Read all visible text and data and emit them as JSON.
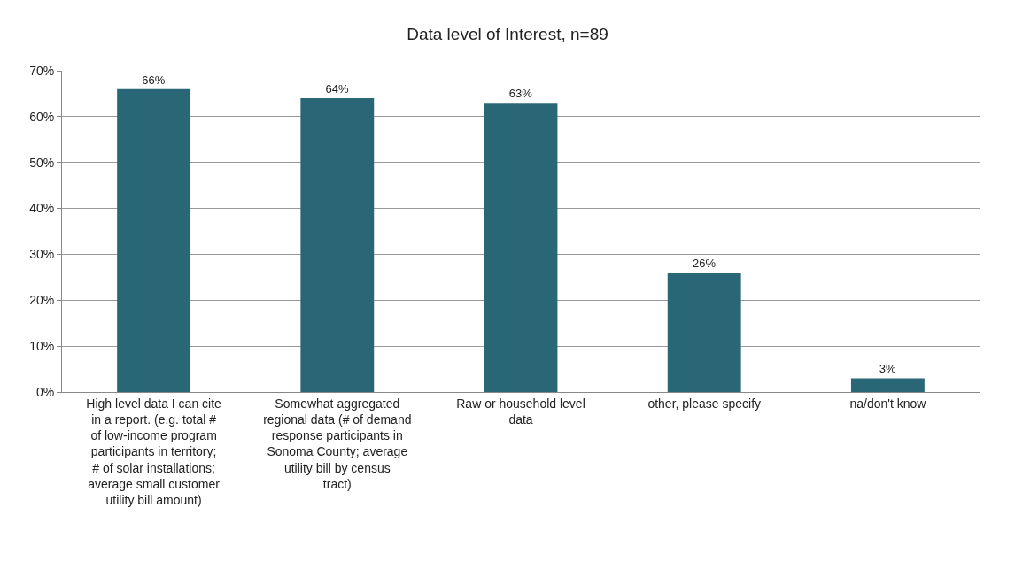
{
  "chart_data": {
    "type": "bar",
    "title": "Data level of Interest, n=89",
    "categories": [
      "High level data I can cite in a report. (e.g. total # of low-income program participants in territory; # of solar installations; average small customer utility bill amount)",
      "Somewhat aggregated regional data (# of demand response participants in Sonoma County; average utility bill by census tract)",
      "Raw or household level data",
      "other, please specify",
      "na/don't know"
    ],
    "values": [
      66,
      64,
      63,
      26,
      3
    ],
    "value_labels": [
      "66%",
      "64%",
      "63%",
      "26%",
      "3%"
    ],
    "color": "#2a6776",
    "ylim": [
      0,
      70
    ],
    "yticks": [
      {
        "value": 0,
        "label": "0%"
      },
      {
        "value": 10,
        "label": "10%"
      },
      {
        "value": 20,
        "label": "20%"
      },
      {
        "value": 30,
        "label": "30%"
      },
      {
        "value": 40,
        "label": "40%"
      },
      {
        "value": 50,
        "label": "50%"
      },
      {
        "value": 60,
        "label": "60%"
      },
      {
        "value": 70,
        "label": "70%"
      }
    ],
    "grid": "y",
    "legend": false
  }
}
